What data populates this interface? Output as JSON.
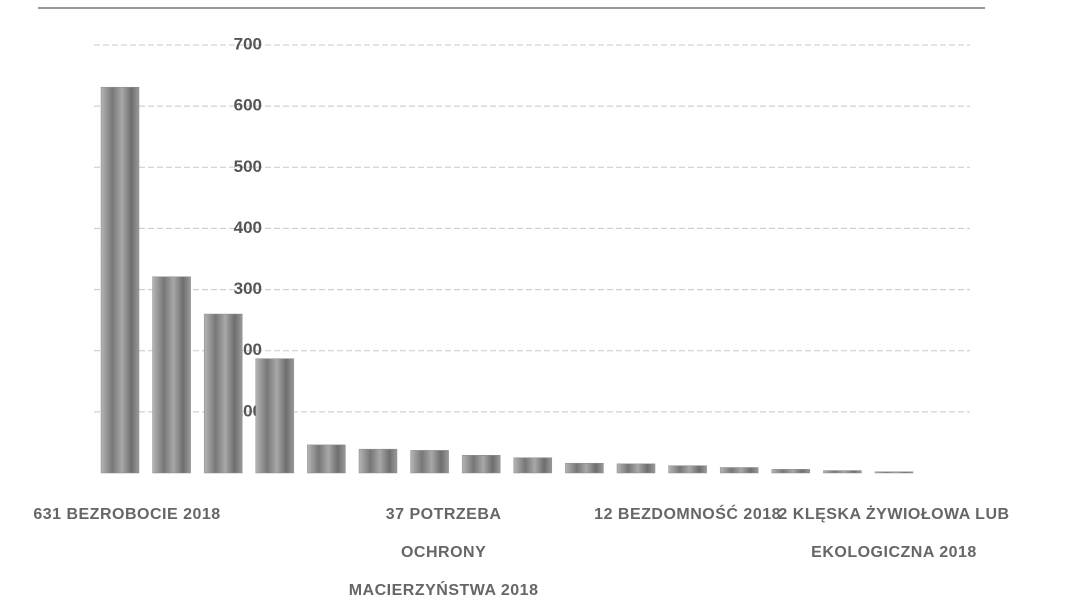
{
  "chart_data": {
    "type": "bar",
    "categories": [
      "631 BEZROBOCIE 2018",
      null,
      null,
      null,
      null,
      null,
      "37 POTRZEBA OCHRONY MACIERZYŃSTWA 2018",
      null,
      null,
      null,
      null,
      "12 BEZDOMNOŚĆ 2018",
      null,
      null,
      null,
      "2 KLĘSKA ŻYWIOŁOWA LUB EKOLOGICZNA 2018"
    ],
    "values": [
      631,
      321,
      260,
      187,
      46,
      39,
      37,
      29,
      25,
      16,
      15,
      12,
      9,
      6,
      4,
      2
    ],
    "color": "#8c8c8c",
    "ylim": [
      0,
      700
    ],
    "yticks": [
      100,
      200,
      300,
      400,
      500,
      600,
      700
    ],
    "grid": true
  }
}
